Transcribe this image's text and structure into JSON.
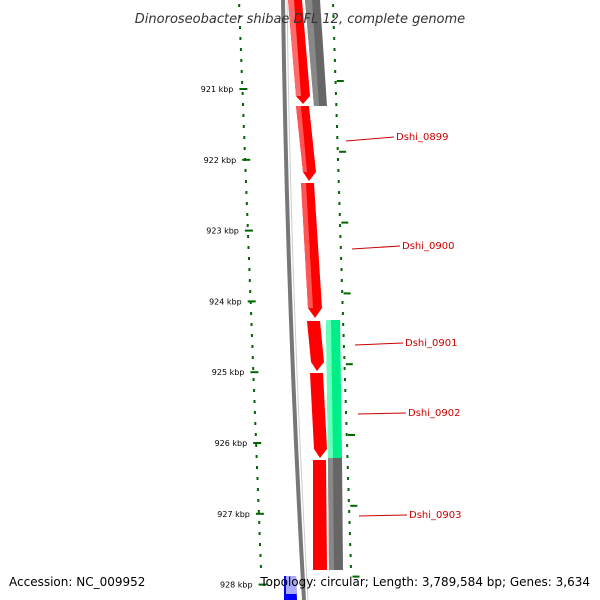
{
  "title": "Dinoroseobacter shibae DFL 12, complete genome",
  "accession": "Accession: NC_009952",
  "topology": "Topology: circular; Length: 3,789,584 bp; Genes: 3,634",
  "ticks": [
    "921 kbp",
    "922 kbp",
    "923 kbp",
    "924 kbp",
    "925 kbp",
    "926 kbp",
    "927 kbp",
    "928 kbp"
  ],
  "genes": [
    {
      "label": "Dshi_0899"
    },
    {
      "label": "Dshi_0900"
    },
    {
      "label": "Dshi_0901"
    },
    {
      "label": "Dshi_0902"
    },
    {
      "label": "Dshi_0903"
    }
  ],
  "colors": {
    "cds": "#ff0000",
    "rrna": "#00ee88",
    "gray_feature": "#666666",
    "blue_feature": "#0000ff",
    "backbone": "#777777",
    "ticks": "#006600",
    "labels": "#cc0000"
  }
}
